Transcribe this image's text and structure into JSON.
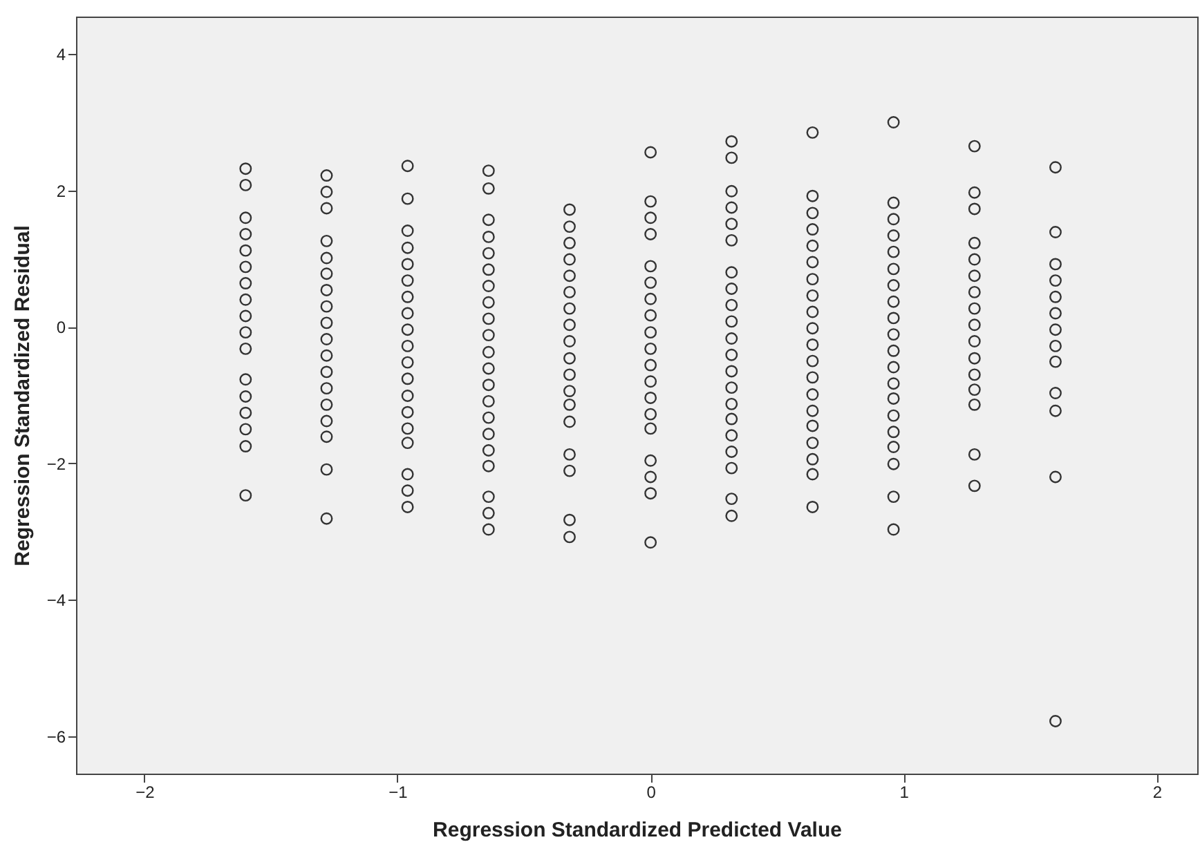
{
  "chart_data": {
    "type": "scatter",
    "xlabel": "Regression Standardized Predicted Value",
    "ylabel": "Regression Standardized Residual",
    "xlim": [
      -2.27,
      2.16
    ],
    "ylim": [
      -6.55,
      4.55
    ],
    "xticks": [
      -2,
      -1,
      0,
      1,
      2
    ],
    "yticks": [
      -6,
      -4,
      -2,
      0,
      2,
      4
    ],
    "marker": "circle",
    "series": [
      {
        "color": "#333333",
        "x": [
          -1.6,
          -1.6,
          -1.6,
          -1.6,
          -1.6,
          -1.6,
          -1.6,
          -1.6,
          -1.6,
          -1.6,
          -1.6,
          -1.6,
          -1.6,
          -1.6,
          -1.6,
          -1.6,
          -1.6
        ],
        "values": [
          2.32,
          2.08,
          1.6,
          1.36,
          1.12,
          0.88,
          0.64,
          0.4,
          0.16,
          -0.08,
          -0.32,
          -0.77,
          -1.02,
          -1.26,
          -1.5,
          -1.75,
          -2.47
        ]
      },
      {
        "color": "#333333",
        "x": [
          -1.28,
          -1.28,
          -1.28,
          -1.28,
          -1.28,
          -1.28,
          -1.28,
          -1.28,
          -1.28,
          -1.28,
          -1.28,
          -1.28,
          -1.28,
          -1.28,
          -1.28,
          -1.28,
          -1.28,
          -1.28
        ],
        "values": [
          2.22,
          1.98,
          1.74,
          1.26,
          1.01,
          0.78,
          0.54,
          0.3,
          0.06,
          -0.18,
          -0.42,
          -0.66,
          -0.9,
          -1.14,
          -1.38,
          -1.61,
          -2.09,
          -2.81
        ]
      },
      {
        "color": "#333333",
        "x": [
          -0.96,
          -0.96,
          -0.96,
          -0.96,
          -0.96,
          -0.96,
          -0.96,
          -0.96,
          -0.96,
          -0.96,
          -0.96,
          -0.96,
          -0.96,
          -0.96,
          -0.96,
          -0.96,
          -0.96,
          -0.96,
          -0.96
        ],
        "values": [
          2.36,
          1.88,
          1.41,
          1.16,
          0.92,
          0.68,
          0.44,
          0.2,
          -0.04,
          -0.28,
          -0.52,
          -0.76,
          -1.01,
          -1.25,
          -1.49,
          -1.7,
          -2.16,
          -2.4,
          -2.64
        ]
      },
      {
        "color": "#333333",
        "x": [
          -0.64,
          -0.64,
          -0.64,
          -0.64,
          -0.64,
          -0.64,
          -0.64,
          -0.64,
          -0.64,
          -0.64,
          -0.64,
          -0.64,
          -0.64,
          -0.64,
          -0.64,
          -0.64,
          -0.64,
          -0.64,
          -0.64,
          -0.64,
          -0.64
        ],
        "values": [
          2.29,
          2.03,
          1.57,
          1.32,
          1.08,
          0.84,
          0.6,
          0.36,
          0.12,
          -0.12,
          -0.37,
          -0.61,
          -0.85,
          -1.09,
          -1.33,
          -1.57,
          -1.81,
          -2.04,
          -2.49,
          -2.73,
          -2.97
        ]
      },
      {
        "color": "#333333",
        "x": [
          -0.32,
          -0.32,
          -0.32,
          -0.32,
          -0.32,
          -0.32,
          -0.32,
          -0.32,
          -0.32,
          -0.32,
          -0.32,
          -0.32,
          -0.32,
          -0.32,
          -0.32,
          -0.32,
          -0.32,
          -0.32
        ],
        "values": [
          1.72,
          1.47,
          1.23,
          0.99,
          0.75,
          0.51,
          0.27,
          0.03,
          -0.21,
          -0.46,
          -0.7,
          -0.94,
          -1.14,
          -1.39,
          -1.87,
          -2.11,
          -2.83,
          -3.08
        ]
      },
      {
        "color": "#333333",
        "x": [
          0,
          0,
          0,
          0,
          0,
          0,
          0,
          0,
          0,
          0,
          0,
          0,
          0,
          0,
          0,
          0,
          0,
          0,
          0
        ],
        "values": [
          2.56,
          1.84,
          1.6,
          1.36,
          0.89,
          0.65,
          0.41,
          0.17,
          -0.08,
          -0.32,
          -0.56,
          -0.8,
          -1.04,
          -1.28,
          -1.49,
          -1.96,
          -2.2,
          -2.44,
          -3.16
        ]
      },
      {
        "color": "#333333",
        "x": [
          0.32,
          0.32,
          0.32,
          0.32,
          0.32,
          0.32,
          0.32,
          0.32,
          0.32,
          0.32,
          0.32,
          0.32,
          0.32,
          0.32,
          0.32,
          0.32,
          0.32,
          0.32,
          0.32,
          0.32,
          0.32
        ],
        "values": [
          2.72,
          2.48,
          1.99,
          1.75,
          1.51,
          1.27,
          0.8,
          0.56,
          0.32,
          0.08,
          -0.17,
          -0.41,
          -0.65,
          -0.89,
          -1.13,
          -1.35,
          -1.59,
          -1.83,
          -2.07,
          -2.52,
          -2.77
        ]
      },
      {
        "color": "#333333",
        "x": [
          0.64,
          0.64,
          0.64,
          0.64,
          0.64,
          0.64,
          0.64,
          0.64,
          0.64,
          0.64,
          0.64,
          0.64,
          0.64,
          0.64,
          0.64,
          0.64,
          0.64,
          0.64,
          0.64,
          0.64
        ],
        "values": [
          2.85,
          1.92,
          1.67,
          1.43,
          1.19,
          0.95,
          0.7,
          0.46,
          0.22,
          -0.02,
          -0.26,
          -0.5,
          -0.74,
          -0.99,
          -1.23,
          -1.45,
          -1.7,
          -1.94,
          -2.16,
          -2.64
        ]
      },
      {
        "color": "#333333",
        "x": [
          0.96,
          0.96,
          0.96,
          0.96,
          0.96,
          0.96,
          0.96,
          0.96,
          0.96,
          0.96,
          0.96,
          0.96,
          0.96,
          0.96,
          0.96,
          0.96,
          0.96,
          0.96,
          0.96,
          0.96
        ],
        "values": [
          3.0,
          1.82,
          1.58,
          1.34,
          1.1,
          0.85,
          0.61,
          0.37,
          0.13,
          -0.11,
          -0.35,
          -0.59,
          -0.83,
          -1.05,
          -1.3,
          -1.54,
          -1.76,
          -2.01,
          -2.49,
          -2.97
        ]
      },
      {
        "color": "#333333",
        "x": [
          1.28,
          1.28,
          1.28,
          1.28,
          1.28,
          1.28,
          1.28,
          1.28,
          1.28,
          1.28,
          1.28,
          1.28,
          1.28,
          1.28,
          1.28,
          1.28
        ],
        "values": [
          2.65,
          1.97,
          1.73,
          1.23,
          0.99,
          0.75,
          0.51,
          0.27,
          0.03,
          -0.21,
          -0.46,
          -0.7,
          -0.92,
          -1.14,
          -1.87,
          -2.33
        ]
      },
      {
        "color": "#333333",
        "x": [
          1.6,
          1.6,
          1.6,
          1.6,
          1.6,
          1.6,
          1.6,
          1.6,
          1.6,
          1.6,
          1.6,
          1.6,
          1.6
        ],
        "values": [
          2.34,
          1.39,
          0.92,
          0.68,
          0.44,
          0.2,
          -0.04,
          -0.28,
          -0.51,
          -0.97,
          -1.23,
          -2.2,
          -5.78
        ]
      }
    ]
  }
}
